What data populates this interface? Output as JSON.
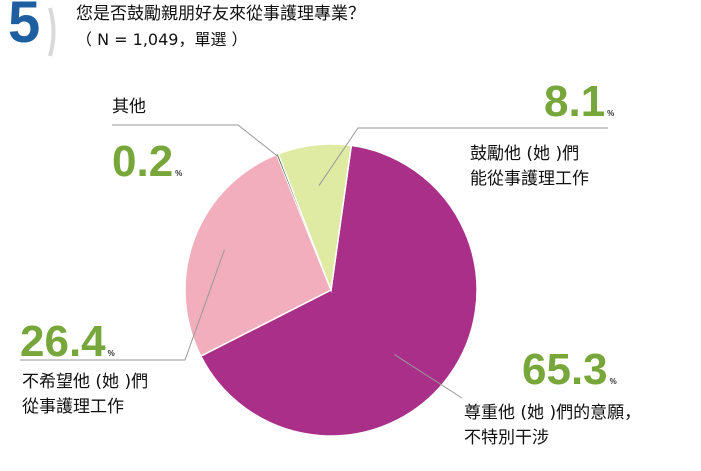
{
  "question": {
    "number": "5",
    "title": "您是否鼓勵親朋好友來從事護理專業？",
    "subtitle": "（ N = 1,049，單選 ）"
  },
  "chart_data": {
    "type": "pie",
    "unit": "%",
    "slices": [
      {
        "label_lines": [
          "尊重他 (她 )們的意願，",
          "不特別干涉"
        ],
        "value": 65.3,
        "value_text": "65.3",
        "color": "#aa2f89"
      },
      {
        "label_lines": [
          "不希望他 (她 )們",
          "從事護理工作"
        ],
        "value": 26.4,
        "value_text": "26.4",
        "color": "#f2aebc"
      },
      {
        "label_lines": [
          "其他"
        ],
        "value": 0.2,
        "value_text": "0.2",
        "color": "#2e5a3c"
      },
      {
        "label_lines": [
          "鼓勵他 (她 )們",
          "能從事護理工作"
        ],
        "value": 8.1,
        "value_text": "8.1",
        "color": "#dfeaa3"
      }
    ],
    "value_color": "#77a63a"
  }
}
